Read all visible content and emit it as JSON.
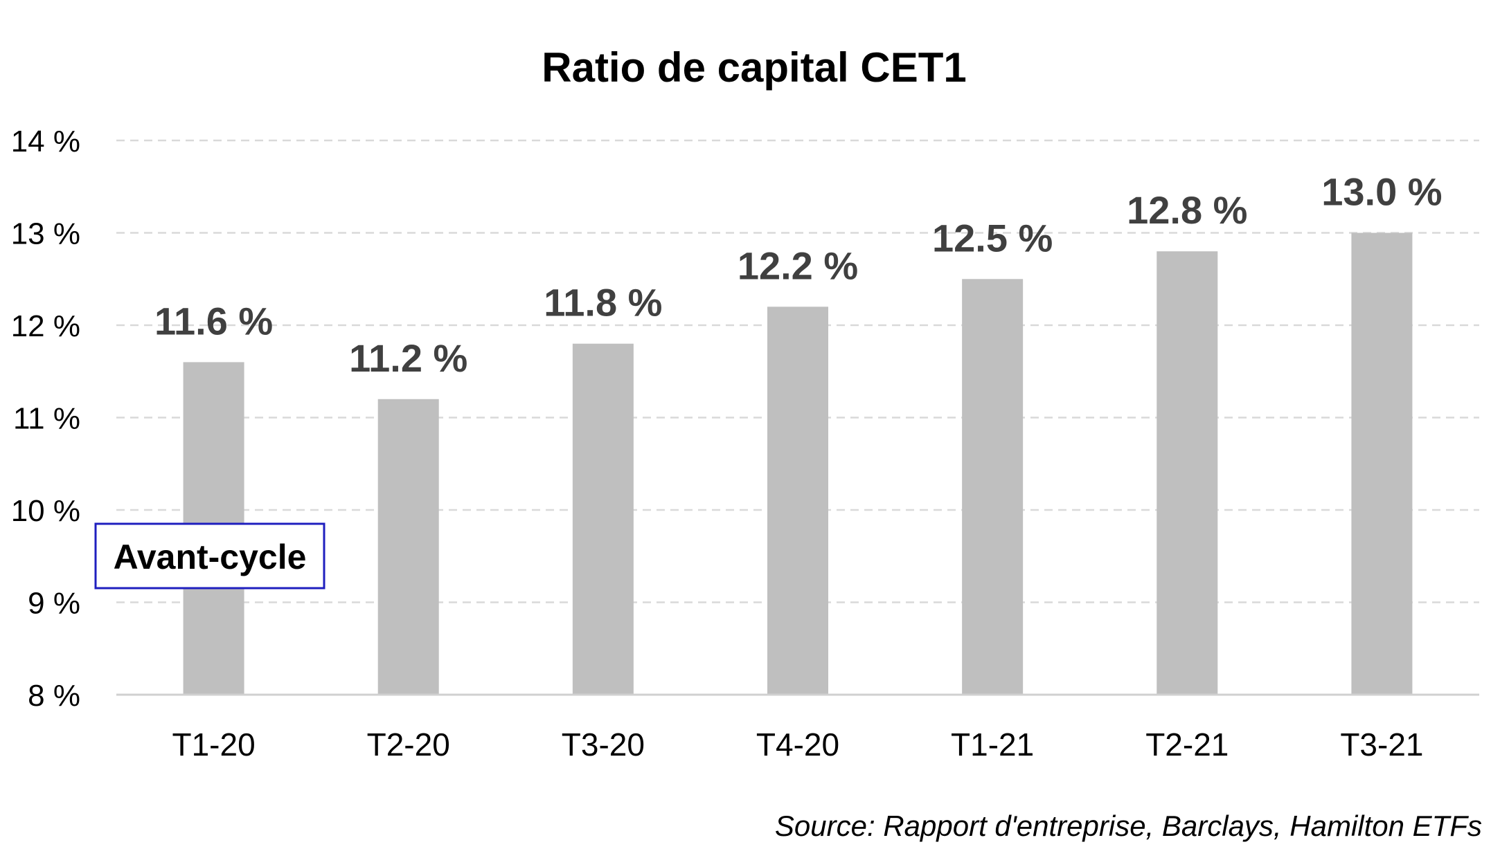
{
  "chart_data": {
    "type": "bar",
    "title": "Ratio de capital CET1",
    "categories": [
      "T1-20",
      "T2-20",
      "T3-20",
      "T4-20",
      "T1-21",
      "T2-21",
      "T3-21"
    ],
    "values": [
      11.6,
      11.2,
      11.8,
      12.2,
      12.5,
      12.8,
      13.0
    ],
    "data_labels": [
      "11.6 %",
      "11.2 %",
      "11.8 %",
      "12.2 %",
      "12.5 %",
      "12.8 %",
      "13.0 %"
    ],
    "y_ticks": [
      8,
      9,
      10,
      11,
      12,
      13,
      14
    ],
    "y_tick_labels": [
      "8 %",
      "9 %",
      "10 %",
      "11 %",
      "12 %",
      "13 %",
      "14 %"
    ],
    "ylim": [
      8,
      14
    ],
    "xlabel": "",
    "ylabel": "",
    "grid": true,
    "grid_style": "dashed",
    "legend": "none",
    "annotation": "Avant-cycle",
    "source": "Source: Rapport d'entreprise, Barclays, Hamilton ETFs",
    "colors": {
      "bar": "#bfbfbf",
      "data_label": "#404040",
      "grid": "#d9d9d9",
      "axis": "#d0d0d0",
      "annotation_border": "#1f1fbf"
    }
  }
}
